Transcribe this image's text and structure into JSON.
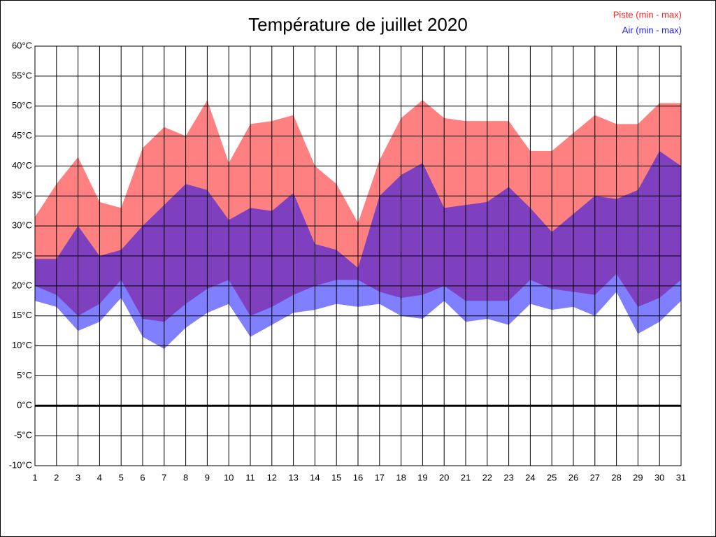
{
  "chart_data": {
    "type": "range_area",
    "title": "Température de juillet 2020",
    "x": [
      1,
      2,
      3,
      4,
      5,
      6,
      7,
      8,
      9,
      10,
      11,
      12,
      13,
      14,
      15,
      16,
      17,
      18,
      19,
      20,
      21,
      22,
      23,
      24,
      25,
      26,
      27,
      28,
      29,
      30,
      31
    ],
    "xlim": [
      1,
      31
    ],
    "xticks": [
      1,
      2,
      3,
      4,
      5,
      6,
      7,
      8,
      9,
      10,
      11,
      12,
      13,
      14,
      15,
      16,
      17,
      18,
      19,
      20,
      21,
      22,
      23,
      24,
      25,
      26,
      27,
      28,
      29,
      30,
      31
    ],
    "ylim": [
      -10,
      60
    ],
    "yticks": [
      {
        "value": -10,
        "label": "-10°C"
      },
      {
        "value": -5,
        "label": "-5°C"
      },
      {
        "value": 0,
        "label": "0°C"
      },
      {
        "value": 5,
        "label": "5°C"
      },
      {
        "value": 10,
        "label": "10°C"
      },
      {
        "value": 15,
        "label": "15°C"
      },
      {
        "value": 20,
        "label": "20°C"
      },
      {
        "value": 25,
        "label": "25°C"
      },
      {
        "value": 30,
        "label": "30°C"
      },
      {
        "value": 35,
        "label": "35°C"
      },
      {
        "value": 40,
        "label": "40°C"
      },
      {
        "value": 45,
        "label": "45°C"
      },
      {
        "value": 50,
        "label": "50°C"
      },
      {
        "value": 55,
        "label": "55°C"
      },
      {
        "value": 60,
        "label": "60°C"
      }
    ],
    "grid": true,
    "legend": "top-right",
    "series": [
      {
        "name": "Piste (min - max)",
        "color": "#ff8080",
        "low": [
          20,
          18.5,
          15,
          17,
          21,
          14.5,
          14,
          17,
          19.5,
          21,
          15,
          16.5,
          18.5,
          20,
          21,
          21,
          19,
          18,
          18.5,
          20,
          17.5,
          17.5,
          17.5,
          21,
          19.5,
          19,
          18.5,
          22,
          16.5,
          18,
          21
        ],
        "high": [
          31.5,
          37,
          41.5,
          34,
          33,
          43,
          46.5,
          45,
          51,
          40.5,
          47,
          47.5,
          48.5,
          40,
          37,
          30.5,
          41,
          48,
          51,
          48,
          47.5,
          47.5,
          47.5,
          42.5,
          42.5,
          45.5,
          48.5,
          47,
          47,
          50.5,
          50.5
        ]
      },
      {
        "name": "Air (min - max)",
        "color": "#0000ff",
        "low": [
          17.5,
          16.5,
          12.5,
          14,
          18,
          11.5,
          9.5,
          13,
          15.5,
          17,
          11.5,
          13.5,
          15.5,
          16,
          17,
          16.5,
          17,
          15,
          14.5,
          17.5,
          14,
          14.5,
          13.5,
          17,
          16,
          16.5,
          15,
          19,
          12,
          14,
          17.5
        ],
        "high": [
          24.5,
          24.5,
          30,
          25,
          26,
          30,
          33.5,
          37,
          36,
          31,
          33,
          32.5,
          35.5,
          27,
          26,
          23,
          35,
          38.5,
          40.5,
          33,
          33.5,
          34,
          36.5,
          33,
          29,
          32,
          35,
          34.5,
          36,
          42.5,
          40
        ]
      }
    ]
  }
}
